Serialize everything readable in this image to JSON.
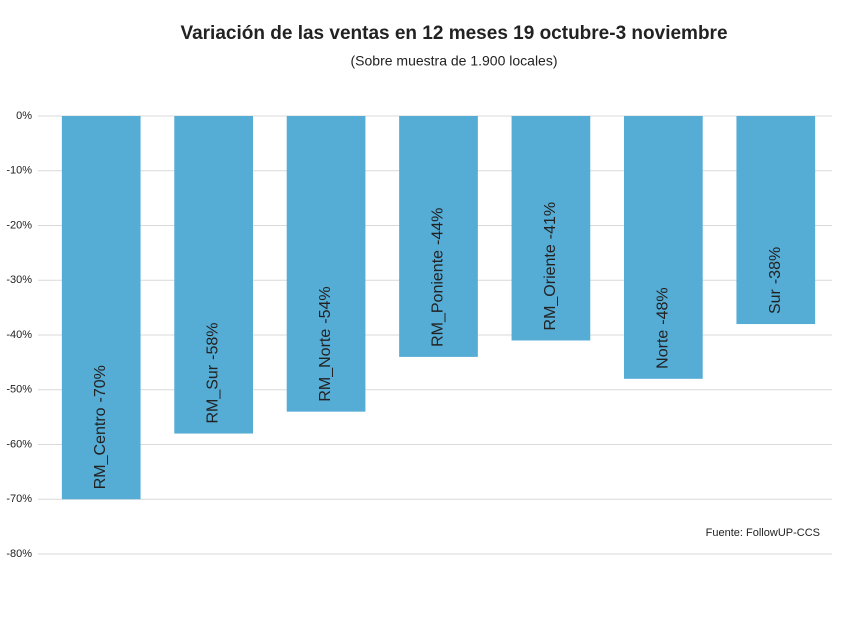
{
  "chart_data": {
    "type": "bar",
    "title": "Variación de las ventas en 12 meses 19 octubre-3 noviembre",
    "subtitle": "(Sobre muestra de 1.900 locales)",
    "source": "Fuente: FollowUP-CCS",
    "categories": [
      "RM_Centro",
      "RM_Sur",
      "RM_Norte",
      "RM_Poniente",
      "RM_Oriente",
      "Norte",
      "Sur"
    ],
    "values": [
      -70,
      -58,
      -54,
      -44,
      -41,
      -48,
      -38
    ],
    "value_labels": [
      "-70%",
      "-58%",
      "-54%",
      "-44%",
      "-41%",
      "-48%",
      "-38%"
    ],
    "color": "#55acd5",
    "ylim": [
      -80,
      0
    ],
    "yticks": [
      {
        "value": 0,
        "label": "0%"
      },
      {
        "value": -10,
        "label": "-10%"
      },
      {
        "value": -20,
        "label": "-20%"
      },
      {
        "value": -30,
        "label": "-30%"
      },
      {
        "value": -40,
        "label": "-40%"
      },
      {
        "value": -50,
        "label": "-50%"
      },
      {
        "value": -60,
        "label": "-60%"
      },
      {
        "value": -70,
        "label": "-70%"
      },
      {
        "value": -80,
        "label": "-80%"
      }
    ],
    "grid": true
  }
}
